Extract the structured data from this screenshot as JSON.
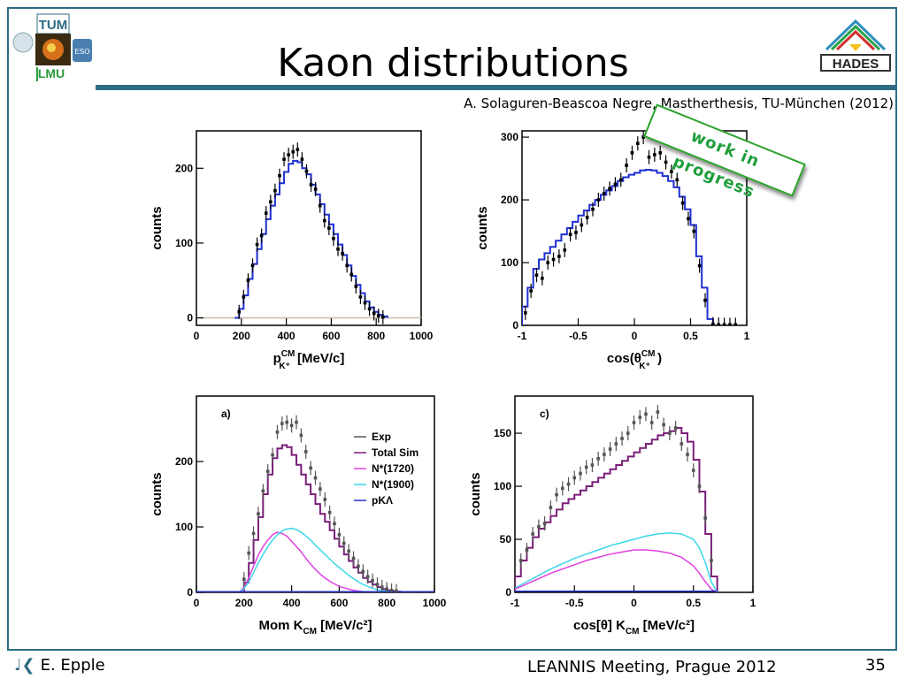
{
  "slide": {
    "title": "Kaon distributions",
    "citation": "A. Solaguren-Beascoa Negre, Mastherthesis, TU-München (2012)",
    "badge": "work in progress",
    "author": "E. Epple",
    "meeting": "LEANNIS Meeting, Prague 2012",
    "page_number": "35",
    "logos": {
      "left_tum": "TUM",
      "left_lmu": "LMU",
      "left_eso": "ESO",
      "right": "HADES"
    },
    "colors": {
      "frame": "#2e6c84",
      "badge": "#1e9e3a"
    },
    "icons": [
      "speaker-icon"
    ]
  },
  "chart_data": [
    {
      "type": "line",
      "id": "top-left",
      "ylabel": "counts",
      "xlabel_main": "p",
      "xlabel_sup": "CM",
      "xlabel_sub": "K⁺",
      "xlabel_unit": "[MeV/c]",
      "xlim": [
        0,
        1000
      ],
      "ylim": [
        -10,
        250
      ],
      "xticks": [
        0,
        200,
        400,
        600,
        800,
        1000
      ],
      "yticks": [
        0,
        100,
        200
      ],
      "series": [
        {
          "style": "steps",
          "color": "#1f2fd0",
          "x": [
            170,
            190,
            210,
            230,
            250,
            270,
            290,
            310,
            330,
            350,
            370,
            390,
            410,
            430,
            450,
            470,
            490,
            510,
            530,
            550,
            570,
            590,
            610,
            630,
            650,
            670,
            690,
            710,
            730,
            750,
            770,
            790,
            810,
            830,
            850
          ],
          "y": [
            0,
            12,
            30,
            52,
            72,
            92,
            112,
            132,
            150,
            165,
            180,
            195,
            206,
            210,
            208,
            200,
            192,
            178,
            165,
            152,
            138,
            125,
            112,
            98,
            84,
            70,
            56,
            44,
            33,
            22,
            14,
            8,
            4,
            2,
            0
          ]
        },
        {
          "style": "points",
          "color": "#000000",
          "x": [
            190,
            210,
            230,
            250,
            270,
            290,
            310,
            330,
            350,
            370,
            390,
            410,
            430,
            450,
            470,
            490,
            510,
            530,
            550,
            570,
            590,
            610,
            630,
            650,
            670,
            690,
            710,
            730,
            750,
            770,
            790,
            810,
            830
          ],
          "y": [
            8,
            28,
            50,
            70,
            98,
            110,
            140,
            155,
            170,
            190,
            212,
            218,
            222,
            225,
            212,
            196,
            178,
            172,
            150,
            130,
            120,
            106,
            92,
            86,
            70,
            58,
            42,
            28,
            20,
            12,
            6,
            3,
            1
          ]
        }
      ]
    },
    {
      "type": "line",
      "id": "top-right",
      "ylabel": "counts",
      "xlabel_main": "cos(θ",
      "xlabel_sup": "CM",
      "xlabel_sub": "K⁺",
      "xlabel_unit": ")",
      "xlim": [
        -1,
        1
      ],
      "ylim": [
        0,
        310
      ],
      "xticks": [
        -1,
        -0.5,
        0,
        0.5,
        1
      ],
      "yticks": [
        0,
        100,
        200,
        300
      ],
      "series": [
        {
          "style": "steps",
          "color": "#1f2fd0",
          "x": [
            -1,
            -0.95,
            -0.9,
            -0.85,
            -0.8,
            -0.75,
            -0.7,
            -0.65,
            -0.6,
            -0.55,
            -0.5,
            -0.45,
            -0.4,
            -0.35,
            -0.3,
            -0.25,
            -0.2,
            -0.15,
            -0.1,
            -0.05,
            0,
            0.05,
            0.1,
            0.15,
            0.2,
            0.25,
            0.3,
            0.35,
            0.4,
            0.45,
            0.5,
            0.55,
            0.6,
            0.65,
            0.7
          ],
          "y": [
            30,
            60,
            90,
            105,
            115,
            125,
            135,
            145,
            155,
            165,
            175,
            183,
            192,
            200,
            208,
            215,
            222,
            230,
            236,
            240,
            243,
            247,
            248,
            247,
            243,
            238,
            230,
            220,
            205,
            185,
            160,
            110,
            60,
            10,
            0
          ]
        },
        {
          "style": "points",
          "color": "#000000",
          "x": [
            -0.97,
            -0.92,
            -0.87,
            -0.82,
            -0.77,
            -0.72,
            -0.67,
            -0.62,
            -0.57,
            -0.52,
            -0.47,
            -0.42,
            -0.37,
            -0.32,
            -0.27,
            -0.22,
            -0.17,
            -0.12,
            -0.07,
            -0.02,
            0.03,
            0.08,
            0.13,
            0.18,
            0.23,
            0.28,
            0.33,
            0.38,
            0.43,
            0.48,
            0.53,
            0.58,
            0.63,
            0.7,
            0.75,
            0.8,
            0.85,
            0.9
          ],
          "y": [
            20,
            55,
            80,
            75,
            100,
            105,
            110,
            120,
            145,
            148,
            160,
            172,
            185,
            200,
            210,
            218,
            225,
            232,
            255,
            275,
            290,
            300,
            268,
            272,
            275,
            260,
            245,
            232,
            195,
            170,
            150,
            95,
            40,
            2,
            1,
            1,
            1,
            1
          ]
        }
      ]
    },
    {
      "type": "line",
      "id": "bottom-left",
      "panel_label": "a)",
      "ylabel": "counts",
      "xlabel_main": "Mom K",
      "xlabel_sub": "CM",
      "xlabel_unit": "[MeV/c²]",
      "xlim": [
        0,
        1000
      ],
      "ylim": [
        0,
        300
      ],
      "xticks": [
        0,
        200,
        400,
        600,
        800,
        1000
      ],
      "yticks": [
        0,
        100,
        200
      ],
      "legend": [
        "Exp",
        "Total Sim",
        "N*(1720)",
        "N*(1900)",
        "pKΛ"
      ],
      "series": [
        {
          "name": "Total Sim",
          "style": "steps",
          "color": "#7a1f7a",
          "x": [
            180,
            200,
            220,
            240,
            260,
            280,
            300,
            320,
            340,
            360,
            380,
            400,
            420,
            440,
            460,
            480,
            500,
            520,
            540,
            560,
            580,
            600,
            620,
            640,
            660,
            680,
            700,
            720,
            740,
            760,
            780,
            800,
            820,
            840,
            860
          ],
          "y": [
            0,
            15,
            45,
            80,
            115,
            150,
            180,
            205,
            220,
            225,
            222,
            210,
            195,
            180,
            165,
            150,
            135,
            120,
            108,
            95,
            82,
            70,
            58,
            48,
            38,
            30,
            22,
            16,
            12,
            8,
            5,
            3,
            2,
            1,
            0
          ]
        },
        {
          "name": "N*(1720)",
          "style": "line",
          "color": "#e040e0",
          "x": [
            180,
            200,
            220,
            240,
            260,
            280,
            300,
            320,
            340,
            360,
            380,
            400,
            420,
            440,
            460,
            480,
            500,
            520,
            540,
            560,
            580,
            600,
            620,
            640,
            660,
            680,
            700,
            720,
            740,
            760,
            780,
            800
          ],
          "y": [
            0,
            8,
            22,
            40,
            57,
            70,
            80,
            88,
            92,
            90,
            86,
            78,
            70,
            62,
            52,
            43,
            35,
            28,
            22,
            17,
            13,
            9,
            7,
            5,
            3,
            2,
            1,
            1,
            0,
            0,
            0,
            0
          ]
        },
        {
          "name": "N*(1900)",
          "style": "line",
          "color": "#3ad8e8",
          "x": [
            180,
            200,
            220,
            240,
            260,
            280,
            300,
            320,
            340,
            360,
            380,
            400,
            420,
            440,
            460,
            480,
            500,
            520,
            540,
            560,
            580,
            600,
            620,
            640,
            660,
            680,
            700,
            720,
            740,
            760,
            780,
            800,
            820,
            840,
            860
          ],
          "y": [
            0,
            6,
            16,
            30,
            45,
            58,
            70,
            80,
            88,
            94,
            97,
            98,
            96,
            92,
            86,
            80,
            72,
            65,
            58,
            51,
            44,
            38,
            32,
            26,
            21,
            16,
            12,
            9,
            6,
            4,
            3,
            2,
            1,
            1,
            0
          ]
        },
        {
          "name": "pKΛ",
          "style": "line",
          "color": "#2030c0",
          "x": [
            0,
            1000
          ],
          "y": [
            1,
            1
          ]
        },
        {
          "name": "Exp",
          "style": "points",
          "color": "#555555",
          "x": [
            200,
            220,
            240,
            260,
            280,
            300,
            320,
            340,
            360,
            380,
            400,
            420,
            440,
            460,
            480,
            500,
            520,
            540,
            560,
            580,
            600,
            620,
            640,
            660,
            680,
            700,
            720,
            740,
            760,
            780,
            800,
            820,
            840
          ],
          "y": [
            20,
            60,
            90,
            120,
            155,
            185,
            210,
            245,
            258,
            260,
            255,
            260,
            240,
            215,
            190,
            175,
            158,
            142,
            122,
            105,
            88,
            75,
            63,
            52,
            40,
            32,
            24,
            18,
            12,
            8,
            5,
            3,
            2
          ]
        }
      ]
    },
    {
      "type": "line",
      "id": "bottom-right",
      "panel_label": "c)",
      "ylabel": "counts",
      "xlabel_main": "cos[θ] K",
      "xlabel_sub": "CM",
      "xlabel_unit": "[MeV/c²]",
      "xlim": [
        -1,
        1
      ],
      "ylim": [
        0,
        185
      ],
      "xticks": [
        -1,
        -0.5,
        0,
        0.5,
        1
      ],
      "yticks": [
        0,
        50,
        100,
        150
      ],
      "series": [
        {
          "style": "steps",
          "color": "#7a1f7a",
          "x": [
            -1,
            -0.95,
            -0.9,
            -0.85,
            -0.8,
            -0.75,
            -0.7,
            -0.65,
            -0.6,
            -0.55,
            -0.5,
            -0.45,
            -0.4,
            -0.35,
            -0.3,
            -0.25,
            -0.2,
            -0.15,
            -0.1,
            -0.05,
            0,
            0.05,
            0.1,
            0.15,
            0.2,
            0.25,
            0.3,
            0.35,
            0.4,
            0.45,
            0.5,
            0.55,
            0.6,
            0.65,
            0.7
          ],
          "y": [
            15,
            30,
            42,
            52,
            60,
            66,
            72,
            78,
            84,
            88,
            92,
            96,
            100,
            104,
            108,
            112,
            116,
            120,
            124,
            128,
            132,
            136,
            140,
            144,
            148,
            150,
            152,
            155,
            150,
            142,
            125,
            95,
            55,
            15,
            0
          ]
        },
        {
          "style": "line",
          "color": "#3ad8e8",
          "x": [
            -1,
            -0.9,
            -0.8,
            -0.7,
            -0.6,
            -0.5,
            -0.4,
            -0.3,
            -0.2,
            -0.1,
            0,
            0.1,
            0.2,
            0.3,
            0.4,
            0.5,
            0.55,
            0.6,
            0.65,
            0.7
          ],
          "y": [
            4,
            10,
            16,
            22,
            27,
            32,
            36,
            40,
            44,
            47,
            50,
            53,
            55,
            56,
            55,
            50,
            42,
            28,
            10,
            0
          ]
        },
        {
          "style": "line",
          "color": "#e040e0",
          "x": [
            -1,
            -0.9,
            -0.8,
            -0.7,
            -0.6,
            -0.5,
            -0.4,
            -0.3,
            -0.2,
            -0.1,
            0,
            0.1,
            0.2,
            0.3,
            0.4,
            0.5,
            0.55,
            0.6,
            0.65,
            0.7
          ],
          "y": [
            3,
            8,
            13,
            18,
            22,
            26,
            30,
            33,
            36,
            38,
            40,
            40,
            39,
            37,
            33,
            25,
            18,
            10,
            3,
            0
          ]
        },
        {
          "style": "line",
          "color": "#2030c0",
          "x": [
            -1,
            0.7
          ],
          "y": [
            1,
            1
          ]
        },
        {
          "style": "points",
          "color": "#555555",
          "x": [
            -0.95,
            -0.9,
            -0.85,
            -0.8,
            -0.75,
            -0.7,
            -0.65,
            -0.6,
            -0.55,
            -0.5,
            -0.45,
            -0.4,
            -0.35,
            -0.3,
            -0.25,
            -0.2,
            -0.15,
            -0.1,
            -0.05,
            0,
            0.05,
            0.1,
            0.15,
            0.2,
            0.25,
            0.3,
            0.35,
            0.4,
            0.45,
            0.5,
            0.55,
            0.6,
            0.65
          ],
          "y": [
            30,
            40,
            55,
            62,
            65,
            80,
            92,
            98,
            102,
            108,
            112,
            118,
            120,
            126,
            130,
            135,
            140,
            145,
            150,
            160,
            165,
            168,
            160,
            170,
            158,
            150,
            155,
            140,
            130,
            115,
            100,
            70,
            30
          ]
        }
      ]
    }
  ]
}
